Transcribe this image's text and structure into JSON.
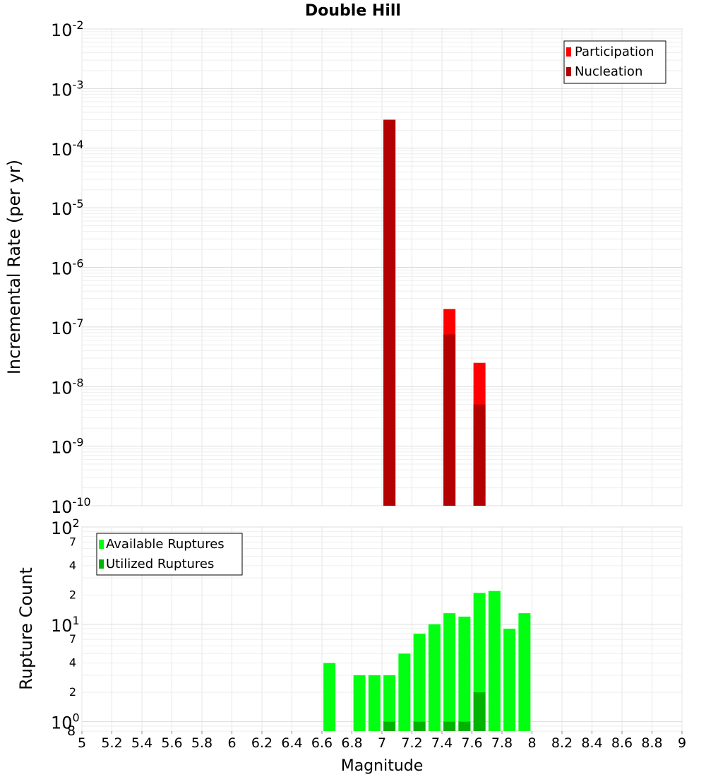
{
  "chart_data": [
    {
      "type": "bar",
      "title": "Double Hill",
      "xlabel": "",
      "ylabel": "Incremental Rate (per yr)",
      "y_scale": "log",
      "ylim": [
        1e-10,
        0.01
      ],
      "xlim": [
        5,
        9
      ],
      "y_tick_base": "10",
      "y_tick_exponents": [
        "-10",
        "-9",
        "-8",
        "-7",
        "-6",
        "-5",
        "-4",
        "-3",
        "-2"
      ],
      "grid": true,
      "legend_position": "top-right",
      "bar_width": 0.08,
      "series": [
        {
          "name": "Participation",
          "color": "#ff0000",
          "points": [
            {
              "x": 7.05,
              "y": 0.0003
            },
            {
              "x": 7.45,
              "y": 2e-07
            },
            {
              "x": 7.65,
              "y": 2.5e-08
            }
          ]
        },
        {
          "name": "Nucleation",
          "color": "#b30000",
          "points": [
            {
              "x": 7.05,
              "y": 0.0003
            },
            {
              "x": 7.45,
              "y": 7.5e-08
            },
            {
              "x": 7.65,
              "y": 5e-09
            }
          ]
        }
      ]
    },
    {
      "type": "bar",
      "title": "",
      "xlabel": "Magnitude",
      "ylabel": "Rupture Count",
      "y_scale": "log",
      "ylim": [
        0.8,
        100
      ],
      "xlim": [
        5,
        9
      ],
      "x_ticks": [
        "5",
        "5.2",
        "5.4",
        "5.6",
        "5.8",
        "6",
        "6.2",
        "6.4",
        "6.6",
        "6.8",
        "7",
        "7.2",
        "7.4",
        "7.6",
        "7.8",
        "8",
        "8.2",
        "8.4",
        "8.6",
        "8.8",
        "9"
      ],
      "y_major_ticks": [
        {
          "base": "10",
          "exp": "0"
        },
        {
          "base": "10",
          "exp": "1"
        },
        {
          "base": "10",
          "exp": "2"
        }
      ],
      "y_minor_ticks": [
        {
          "value": 2,
          "label": "2"
        },
        {
          "value": 4,
          "label": "4"
        },
        {
          "value": 7,
          "label": "7"
        },
        {
          "value": 20,
          "label": "2"
        },
        {
          "value": 40,
          "label": "4"
        },
        {
          "value": 70,
          "label": "7"
        }
      ],
      "y_bottom_label": "8",
      "grid": true,
      "legend_position": "top-left",
      "bar_width": 0.08,
      "series": [
        {
          "name": "Available Ruptures",
          "color": "#00ff11",
          "points": [
            {
              "x": 6.65,
              "y": 4
            },
            {
              "x": 6.85,
              "y": 3
            },
            {
              "x": 6.95,
              "y": 3
            },
            {
              "x": 7.05,
              "y": 3
            },
            {
              "x": 7.15,
              "y": 5
            },
            {
              "x": 7.25,
              "y": 8
            },
            {
              "x": 7.35,
              "y": 10
            },
            {
              "x": 7.45,
              "y": 13
            },
            {
              "x": 7.55,
              "y": 12
            },
            {
              "x": 7.65,
              "y": 21
            },
            {
              "x": 7.75,
              "y": 22
            },
            {
              "x": 7.85,
              "y": 9
            },
            {
              "x": 7.95,
              "y": 13
            }
          ]
        },
        {
          "name": "Utilized Ruptures",
          "color": "#00b300",
          "points": [
            {
              "x": 7.05,
              "y": 1
            },
            {
              "x": 7.25,
              "y": 1
            },
            {
              "x": 7.45,
              "y": 1
            },
            {
              "x": 7.55,
              "y": 1
            },
            {
              "x": 7.65,
              "y": 2
            }
          ]
        }
      ]
    }
  ]
}
